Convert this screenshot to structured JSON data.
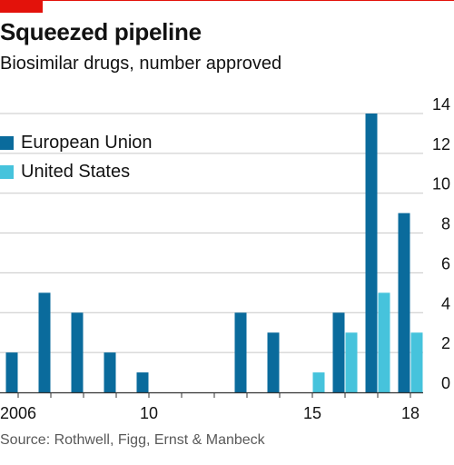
{
  "header": {
    "title": "Squeezed pipeline",
    "subtitle": "Biosimilar drugs, number approved"
  },
  "footer": {
    "source": "Source: Rothwell, Figg, Ernst & Manbeck"
  },
  "colors": {
    "eu": "#0a6b9c",
    "us": "#46c3dc",
    "accent": "#e3120b",
    "grid": "#c7c7c7",
    "axis": "#333333"
  },
  "chart_data": {
    "type": "bar",
    "title": "Squeezed pipeline",
    "subtitle": "Biosimilar drugs, number approved",
    "xlabel": "",
    "ylabel": "",
    "ylim": [
      0,
      14
    ],
    "yticks": [
      0,
      2,
      4,
      6,
      8,
      10,
      12,
      14
    ],
    "y_axis_side": "right",
    "grid": true,
    "legend_position": "top-left",
    "categories": [
      2006,
      2007,
      2008,
      2009,
      2010,
      2011,
      2012,
      2013,
      2014,
      2015,
      2016,
      2017,
      2018
    ],
    "xtick_labels": [
      {
        "year": 2006,
        "label": "2006"
      },
      {
        "year": 2010,
        "label": "10"
      },
      {
        "year": 2015,
        "label": "15"
      },
      {
        "year": 2018,
        "label": "18"
      }
    ],
    "series": [
      {
        "name": "European Union",
        "color": "#0a6b9c",
        "values": [
          2,
          5,
          4,
          2,
          1,
          0,
          0,
          4,
          3,
          0,
          4,
          14,
          9
        ]
      },
      {
        "name": "United States",
        "color": "#46c3dc",
        "values": [
          0,
          0,
          0,
          0,
          0,
          0,
          0,
          0,
          0,
          1,
          3,
          5,
          3
        ]
      }
    ]
  }
}
